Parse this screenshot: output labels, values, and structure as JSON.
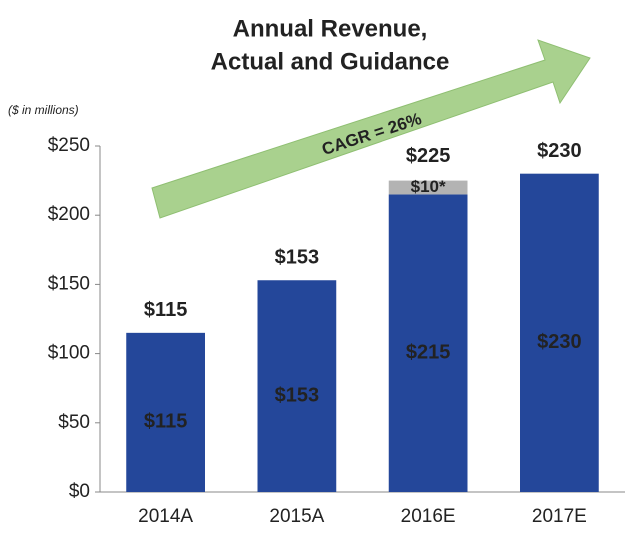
{
  "chart_data": {
    "type": "stacked_bar",
    "title": [
      "Annual Revenue,",
      "Actual and Guidance"
    ],
    "y_unit_label": "($ in millions)",
    "annotation": "CAGR = 26%",
    "categories": [
      "2014A",
      "2015A",
      "2016E",
      "2017E"
    ],
    "series": [
      {
        "color": "#24479a",
        "values": [
          115,
          153,
          215,
          230
        ],
        "value_labels": [
          "$115",
          "$153",
          "$215",
          "$230"
        ]
      },
      {
        "color": "#b3b3b3",
        "values": [
          null,
          null,
          10,
          null
        ],
        "value_labels": [
          null,
          null,
          "$10*",
          null
        ]
      }
    ],
    "total_labels": [
      "$115",
      "$153",
      "$225",
      "$230"
    ],
    "ylim": [
      0,
      250
    ],
    "yticks": [
      {
        "value": 0,
        "label": "$0"
      },
      {
        "value": 50,
        "label": "$50"
      },
      {
        "value": 100,
        "label": "$100"
      },
      {
        "value": 150,
        "label": "$150"
      },
      {
        "value": 200,
        "label": "$200"
      },
      {
        "value": 250,
        "label": "$250"
      }
    ]
  }
}
